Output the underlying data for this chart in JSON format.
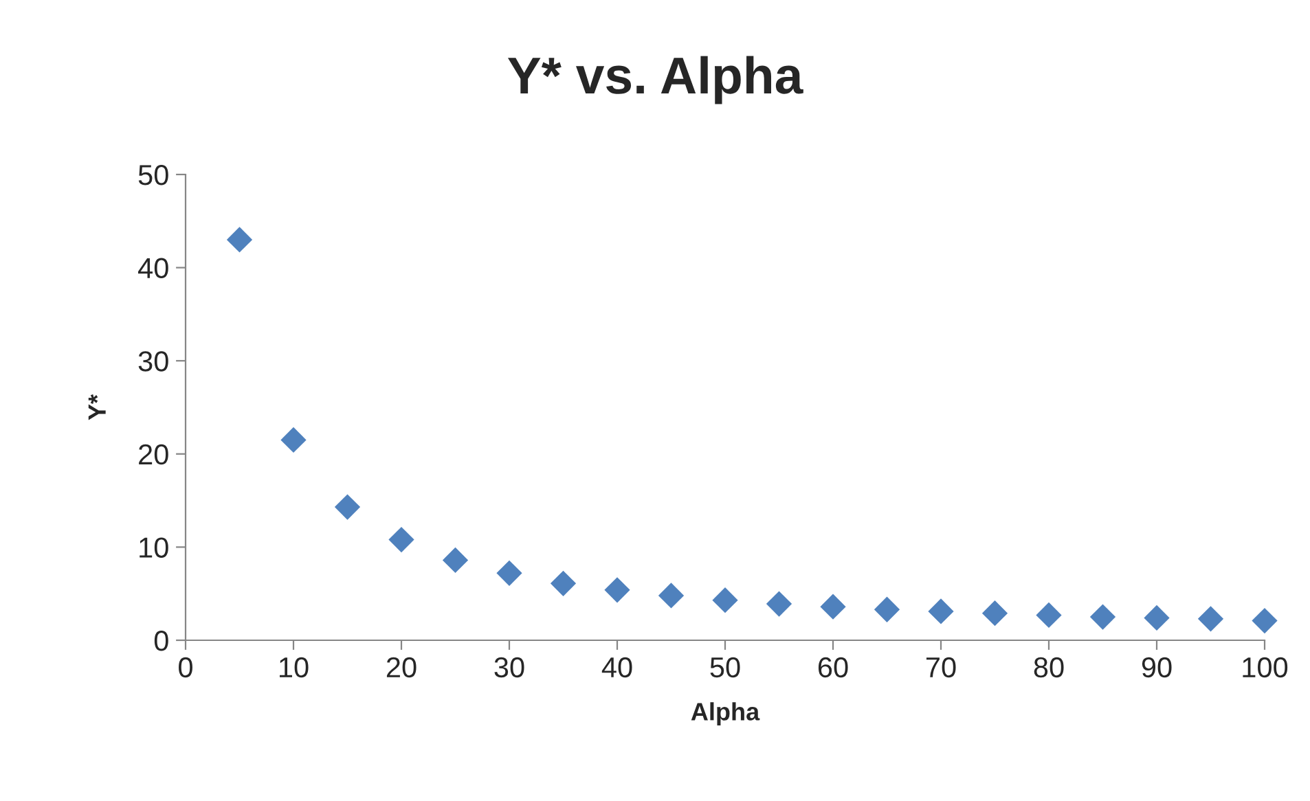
{
  "chart_data": {
    "type": "scatter",
    "title": "Y* vs. Alpha",
    "xlabel": "Alpha",
    "ylabel": "Y*",
    "x": [
      5,
      10,
      15,
      20,
      25,
      30,
      35,
      40,
      45,
      50,
      55,
      60,
      65,
      70,
      75,
      80,
      85,
      90,
      95,
      100
    ],
    "series": [
      {
        "color": "#4f81bd",
        "values": [
          43,
          21.5,
          14.3,
          10.8,
          8.6,
          7.2,
          6.1,
          5.4,
          4.8,
          4.3,
          3.9,
          3.6,
          3.3,
          3.1,
          2.9,
          2.7,
          2.5,
          2.4,
          2.3,
          2.1
        ]
      }
    ],
    "xlim": [
      0,
      100
    ],
    "xticks": [
      0,
      10,
      20,
      30,
      40,
      50,
      60,
      70,
      80,
      90,
      100
    ],
    "ylim": [
      0,
      50
    ],
    "yticks": [
      0,
      10,
      20,
      30,
      40,
      50
    ],
    "marker": "diamond",
    "grid": false
  }
}
